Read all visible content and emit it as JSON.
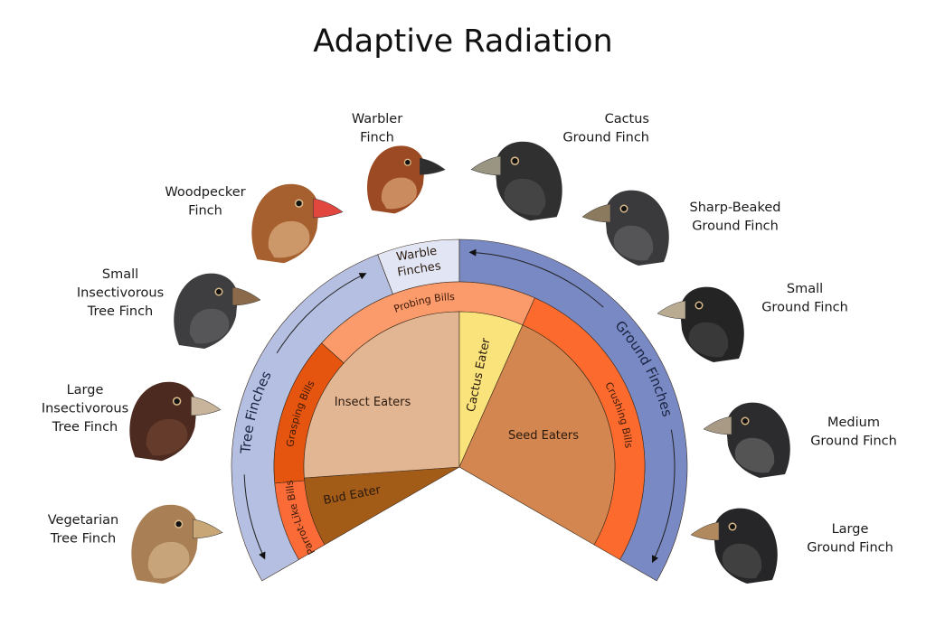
{
  "title": "Adaptive Radiation",
  "outer_ring": {
    "tree_finches": {
      "label": "Tree Finches",
      "color": "#b4bfe1"
    },
    "warble_finches": {
      "lines": [
        "Warble",
        "Finches"
      ],
      "color": "#e1e5f4"
    },
    "ground_finches": {
      "label": "Ground Finches",
      "color": "#7889c4"
    }
  },
  "bill_ring": {
    "parrot_like": {
      "label": "Parrot-Like Bills",
      "color": "#fb6b37"
    },
    "grasping": {
      "label": "Grasping Bills",
      "color": "#e65510"
    },
    "probing": {
      "label": "Probing Bills",
      "color": "#fb9a6a"
    },
    "crushing": {
      "label": "Crushing Bills",
      "color": "#fd6a2e"
    }
  },
  "diet": {
    "bud_eater": {
      "label": "Bud Eater",
      "color": "#a35b18"
    },
    "insect_eaters": {
      "label": "Insect Eaters",
      "color": "#e3b693"
    },
    "cactus_eater": {
      "label": "Cactus Eater",
      "color": "#fae37b"
    },
    "seed_eaters": {
      "label": "Seed Eaters",
      "color": "#d3864f"
    }
  },
  "birds": [
    {
      "lines": [
        "Vegetarian",
        "Tree Finch"
      ],
      "body": "#a97f55",
      "light": "#e2c29a",
      "beak": "#c9a676"
    },
    {
      "lines": [
        "Large",
        "Insectivorous",
        "Tree Finch"
      ],
      "body": "#4d2a1f",
      "light": "#7a4a36",
      "beak": "#c7b49a"
    },
    {
      "lines": [
        "Small",
        "Insectivorous",
        "Tree Finch"
      ],
      "body": "#3e3e40",
      "light": "#6a6a6c",
      "beak": "#8a6a4a"
    },
    {
      "lines": [
        "Woodpecker",
        "Finch"
      ],
      "body": "#a65f2e",
      "light": "#ecc79b",
      "beak": "#e2473f"
    },
    {
      "lines": [
        "Warbler",
        "Finch"
      ],
      "body": "#9c4a24",
      "light": "#f0c190",
      "beak": "#2e2e2e"
    },
    {
      "lines": [
        "Cactus",
        "Ground Finch"
      ],
      "body": "#303030",
      "light": "#555",
      "beak": "#9a9583"
    },
    {
      "lines": [
        "Sharp-Beaked",
        "Ground Finch"
      ],
      "body": "#3a3a3c",
      "light": "#6b6b6e",
      "beak": "#8c7a5e"
    },
    {
      "lines": [
        "Small",
        "Ground Finch"
      ],
      "body": "#242424",
      "light": "#4a4a4a",
      "beak": "#b9ab92"
    },
    {
      "lines": [
        "Medium",
        "Ground Finch"
      ],
      "body": "#2c2c2e",
      "light": "#777",
      "beak": "#a89a84"
    },
    {
      "lines": [
        "Large",
        "Ground Finch"
      ],
      "body": "#262628",
      "light": "#555",
      "beak": "#b08a5e"
    }
  ]
}
